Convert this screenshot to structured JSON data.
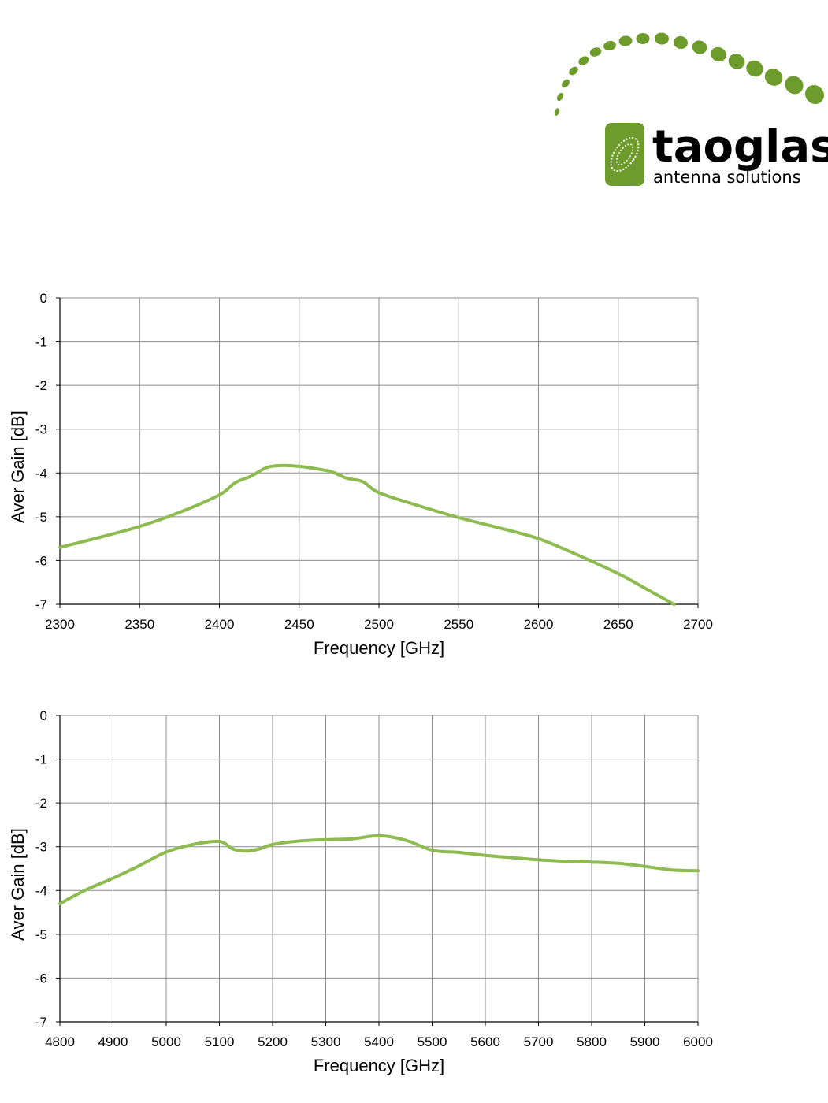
{
  "brand": {
    "name": "taoglas",
    "tagline": "antenna solutions",
    "color_dark": "#6d9b2c",
    "color_light": "#8dbb3f"
  },
  "chart_data": [
    {
      "type": "line",
      "xlabel": "Frequency [GHz]",
      "ylabel": "Aver Gain [dB]",
      "xlim": [
        2300,
        2700
      ],
      "ylim": [
        -7,
        0
      ],
      "xticks": [
        2300,
        2350,
        2400,
        2450,
        2500,
        2550,
        2600,
        2650,
        2700
      ],
      "yticks": [
        0,
        -1,
        -2,
        -3,
        -4,
        -5,
        -6,
        -7
      ],
      "grid": true,
      "series_color": "#8dbb4f",
      "x": [
        2300,
        2325,
        2350,
        2375,
        2400,
        2410,
        2420,
        2430,
        2440,
        2450,
        2460,
        2470,
        2480,
        2490,
        2500,
        2525,
        2550,
        2575,
        2600,
        2625,
        2650,
        2670,
        2685
      ],
      "y": [
        -5.7,
        -5.47,
        -5.22,
        -4.9,
        -4.5,
        -4.22,
        -4.07,
        -3.87,
        -3.83,
        -3.85,
        -3.9,
        -3.97,
        -4.12,
        -4.2,
        -4.45,
        -4.75,
        -5.02,
        -5.25,
        -5.5,
        -5.88,
        -6.3,
        -6.7,
        -7.0
      ]
    },
    {
      "type": "line",
      "xlabel": "Frequency [GHz]",
      "ylabel": "Aver Gain [dB]",
      "xlim": [
        4800,
        6000
      ],
      "ylim": [
        -7,
        0
      ],
      "xticks": [
        4800,
        4900,
        5000,
        5100,
        5200,
        5300,
        5400,
        5500,
        5600,
        5700,
        5800,
        5900,
        6000
      ],
      "yticks": [
        0,
        -1,
        -2,
        -3,
        -4,
        -5,
        -6,
        -7
      ],
      "grid": true,
      "series_color": "#8dbb4f",
      "x": [
        4800,
        4850,
        4900,
        4950,
        5000,
        5050,
        5100,
        5125,
        5150,
        5175,
        5200,
        5250,
        5300,
        5350,
        5400,
        5450,
        5500,
        5550,
        5600,
        5650,
        5700,
        5750,
        5800,
        5850,
        5900,
        5950,
        6000
      ],
      "y": [
        -4.3,
        -3.98,
        -3.72,
        -3.43,
        -3.12,
        -2.95,
        -2.88,
        -3.05,
        -3.1,
        -3.05,
        -2.95,
        -2.87,
        -2.84,
        -2.82,
        -2.75,
        -2.85,
        -3.08,
        -3.13,
        -3.2,
        -3.25,
        -3.3,
        -3.33,
        -3.35,
        -3.38,
        -3.45,
        -3.53,
        -3.55
      ]
    }
  ]
}
